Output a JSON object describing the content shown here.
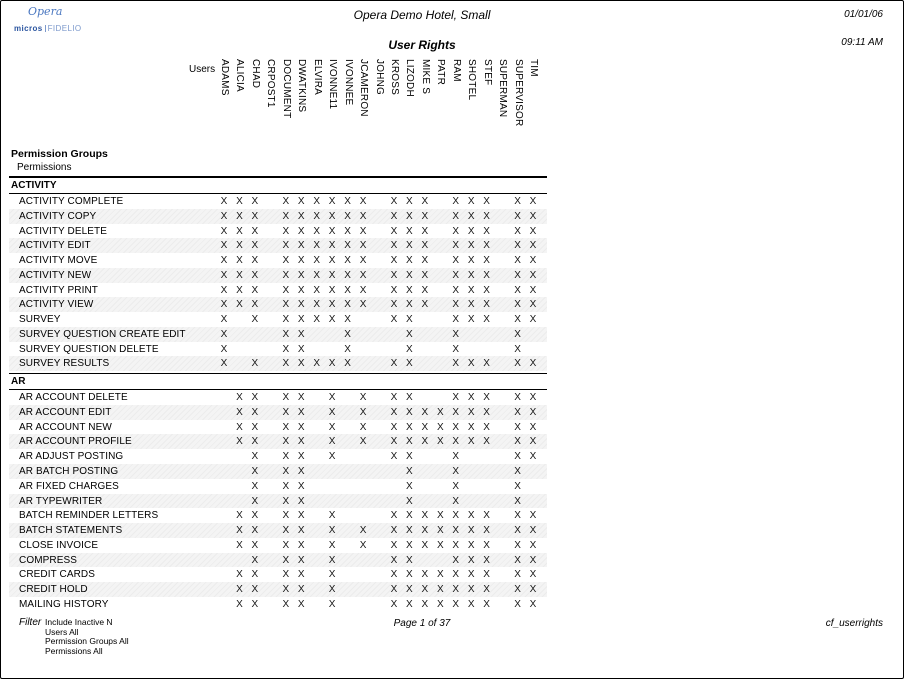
{
  "page": {
    "logo": {
      "script": "Opera",
      "brand_left": "micros",
      "brand_right": "FIDELIO"
    },
    "hotel_title": "Opera Demo Hotel, Small",
    "report_title": "User Rights",
    "date": "01/01/06",
    "time": "09:11 AM"
  },
  "table": {
    "users_label": "Users",
    "header_line1": "Permission Groups",
    "header_line2": "Permissions",
    "mark": "X",
    "users": [
      "ADAMS",
      "ALICIA",
      "CHAD",
      "CRPOST1",
      "DOCUMENT",
      "DWATKINS",
      "ELVIRA",
      "IVONNE11",
      "IVONNEE",
      "JCAMERON",
      "JOHNG",
      "KROSS",
      "LIZODH",
      "MIKE S",
      "PATR",
      "RAM",
      "SHOTEL",
      "STEF",
      "SUPERMAN",
      "SUPERVISOR",
      "TIM"
    ],
    "groups": [
      {
        "name": "ACTIVITY",
        "rows": [
          {
            "label": "ACTIVITY COMPLETE",
            "grants": "111011111101110111011"
          },
          {
            "label": "ACTIVITY COPY",
            "grants": "111011111101110111011"
          },
          {
            "label": "ACTIVITY DELETE",
            "grants": "111011111101110111011"
          },
          {
            "label": "ACTIVITY EDIT",
            "grants": "111011111101110111011"
          },
          {
            "label": "ACTIVITY MOVE",
            "grants": "111011111101110111011"
          },
          {
            "label": "ACTIVITY NEW",
            "grants": "111011111101110111011"
          },
          {
            "label": "ACTIVITY PRINT",
            "grants": "111011111101110111011"
          },
          {
            "label": "ACTIVITY VIEW",
            "grants": "111011111101110111011"
          },
          {
            "label": "SURVEY",
            "grants": "101011111001100111011"
          },
          {
            "label": "SURVEY QUESTION CREATE EDIT",
            "grants": "100011001000100100010"
          },
          {
            "label": "SURVEY QUESTION DELETE",
            "grants": "100011001000100100010"
          },
          {
            "label": "SURVEY RESULTS",
            "grants": "101011111001100111011"
          }
        ]
      },
      {
        "name": "AR",
        "rows": [
          {
            "label": "AR ACCOUNT DELETE",
            "grants": "011011010101100111011"
          },
          {
            "label": "AR ACCOUNT EDIT",
            "grants": "011011010101111111011"
          },
          {
            "label": "AR ACCOUNT NEW",
            "grants": "011011010101111111011"
          },
          {
            "label": "AR ACCOUNT PROFILE",
            "grants": "011011010101111111011"
          },
          {
            "label": "AR ADJUST POSTING",
            "grants": "001011010001100100011"
          },
          {
            "label": "AR BATCH POSTING",
            "grants": "001011000000100100010"
          },
          {
            "label": "AR FIXED CHARGES",
            "grants": "001011000000100100010"
          },
          {
            "label": "AR TYPEWRITER",
            "grants": "001011000000100100010"
          },
          {
            "label": "BATCH REMINDER LETTERS",
            "grants": "011011010001111111011"
          },
          {
            "label": "BATCH STATEMENTS",
            "grants": "011011010101111111011"
          },
          {
            "label": "CLOSE INVOICE",
            "grants": "011011010101111111011"
          },
          {
            "label": "COMPRESS",
            "grants": "001011010001100111011"
          },
          {
            "label": "CREDIT CARDS",
            "grants": "011011010001111111011"
          },
          {
            "label": "CREDIT HOLD",
            "grants": "011011010001111111011"
          },
          {
            "label": "MAILING HISTORY",
            "grants": "011011010001111111011"
          }
        ]
      }
    ]
  },
  "footer": {
    "filter_label": "Filter",
    "filters": [
      "Include Inactive N",
      "Users All",
      "Permission Groups All",
      "Permissions All"
    ],
    "page_info": "Page 1 of 37",
    "report_code": "cf_userrights"
  },
  "colors": {
    "logo_blue": "#2b55a0",
    "logo_light_blue": "#7c99cc",
    "mark": "#161616",
    "row_alt": "#f0f0f0"
  }
}
